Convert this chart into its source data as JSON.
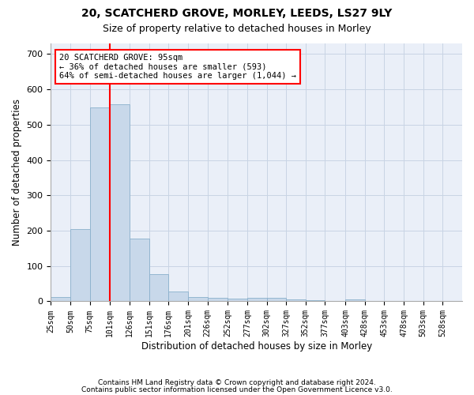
{
  "title1": "20, SCATCHERD GROVE, MORLEY, LEEDS, LS27 9LY",
  "title2": "Size of property relative to detached houses in Morley",
  "xlabel": "Distribution of detached houses by size in Morley",
  "ylabel": "Number of detached properties",
  "annotation_line1": "20 SCATCHERD GROVE: 95sqm",
  "annotation_line2": "← 36% of detached houses are smaller (593)",
  "annotation_line3": "64% of semi-detached houses are larger (1,044) →",
  "footer1": "Contains HM Land Registry data © Crown copyright and database right 2024.",
  "footer2": "Contains public sector information licensed under the Open Government Licence v3.0.",
  "bin_edges": [
    25,
    50,
    75,
    101,
    126,
    151,
    176,
    201,
    226,
    252,
    277,
    302,
    327,
    352,
    377,
    403,
    428,
    453,
    478,
    503,
    528,
    553
  ],
  "bin_labels": [
    "25sqm",
    "50sqm",
    "75sqm",
    "101sqm",
    "126sqm",
    "151sqm",
    "176sqm",
    "201sqm",
    "226sqm",
    "252sqm",
    "277sqm",
    "302sqm",
    "327sqm",
    "352sqm",
    "377sqm",
    "403sqm",
    "428sqm",
    "453sqm",
    "478sqm",
    "503sqm",
    "528sqm"
  ],
  "bar_heights": [
    13,
    204,
    550,
    557,
    178,
    77,
    28,
    12,
    11,
    8,
    11,
    11,
    6,
    4,
    0,
    5,
    0,
    0,
    0,
    0,
    0
  ],
  "bar_color": "#c8d8ea",
  "bar_edge_color": "#8ab0cc",
  "grid_color": "#c8d4e4",
  "background_color": "#eaeff8",
  "vline_x": 101,
  "vline_color": "red",
  "annotation_box_color": "red",
  "ylim": [
    0,
    730
  ],
  "yticks": [
    0,
    100,
    200,
    300,
    400,
    500,
    600,
    700
  ],
  "title_fontsize": 10,
  "subtitle_fontsize": 9
}
